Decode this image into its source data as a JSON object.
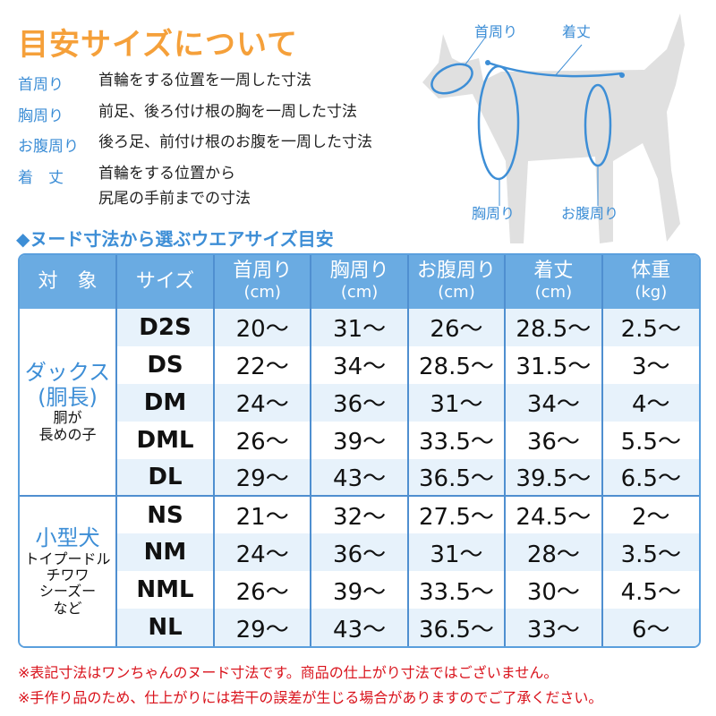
{
  "title": "目安サイズについて",
  "definitions": [
    {
      "term": "首周り",
      "text": "首輪をする位置を一周した寸法"
    },
    {
      "term": "胸周り",
      "text": "前足、後ろ付け根の胸を一周した寸法"
    },
    {
      "term": "お腹周り",
      "text": "後ろ足、前付け根のお腹を一周した寸法"
    },
    {
      "term": "着　丈",
      "text": "首輪をする位置から",
      "text2": "尻尾の手前までの寸法"
    }
  ],
  "diagram": {
    "neck": "首周り",
    "length": "着丈",
    "chest": "胸周り",
    "belly": "お腹周り"
  },
  "subtitle": "◆ヌード寸法から選ぶウエアサイズ目安",
  "table": {
    "headers": [
      {
        "label": "対　象"
      },
      {
        "label": "サイズ"
      },
      {
        "label": "首周り",
        "unit": "(cm)"
      },
      {
        "label": "胸周り",
        "unit": "(cm)"
      },
      {
        "label": "お腹周り",
        "unit": "(cm)"
      },
      {
        "label": "着丈",
        "unit": "(cm)"
      },
      {
        "label": "体重",
        "unit": "(kg)"
      }
    ],
    "groups": [
      {
        "name": "ダックス",
        "name2": "(胴長)",
        "desc": "胴が",
        "desc2": "長めの子",
        "rows": [
          [
            "D2S",
            "20〜",
            "31〜",
            "26〜",
            "28.5〜",
            "2.5〜"
          ],
          [
            "DS",
            "22〜",
            "34〜",
            "28.5〜",
            "31.5〜",
            "3〜"
          ],
          [
            "DM",
            "24〜",
            "36〜",
            "31〜",
            "34〜",
            "4〜"
          ],
          [
            "DML",
            "26〜",
            "39〜",
            "33.5〜",
            "36〜",
            "5.5〜"
          ],
          [
            "DL",
            "29〜",
            "43〜",
            "36.5〜",
            "39.5〜",
            "6.5〜"
          ]
        ]
      },
      {
        "name": "小型犬",
        "desc": "トイプードル",
        "desc2": "チワワ",
        "desc3": "シーズー",
        "desc4": "など",
        "rows": [
          [
            "NS",
            "21〜",
            "32〜",
            "27.5〜",
            "24.5〜",
            "2〜"
          ],
          [
            "NM",
            "24〜",
            "36〜",
            "31〜",
            "28〜",
            "3.5〜"
          ],
          [
            "NML",
            "26〜",
            "39〜",
            "33.5〜",
            "30〜",
            "4.5〜"
          ],
          [
            "NL",
            "29〜",
            "43〜",
            "36.5〜",
            "33〜",
            "6〜"
          ]
        ]
      }
    ]
  },
  "notes": [
    "※表記寸法はワンちゃんのヌード寸法です。商品の仕上がり寸法ではございません。",
    "※手作り品のため、仕上がりには若干の誤差が生じる場合がありますのでご了承ください。"
  ],
  "colors": {
    "title": "#f5a03a",
    "accent": "#3d8ed6",
    "header": "#6aabe2",
    "note": "#d9121b",
    "dog": "#e0e0e0"
  }
}
